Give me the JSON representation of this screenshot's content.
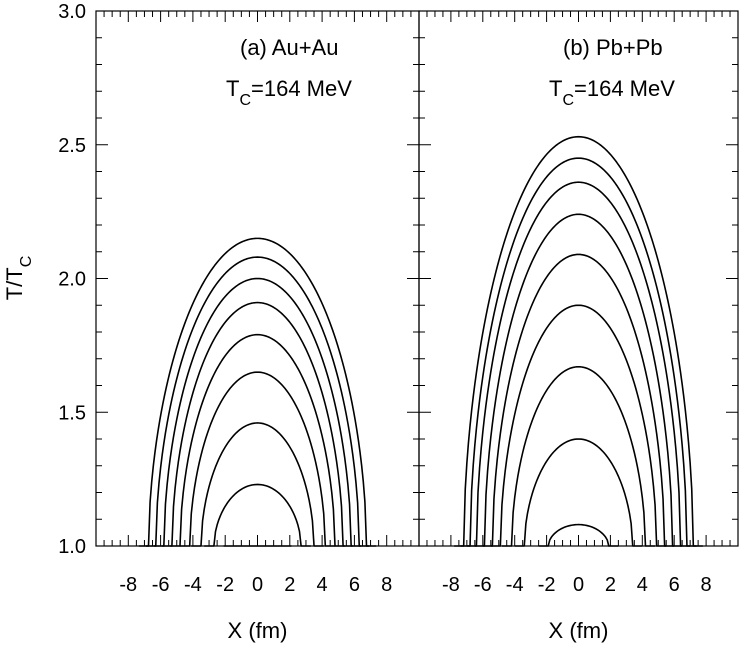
{
  "figure": {
    "ylabel": "T/T",
    "ylabel_sub": "C"
  },
  "chart_data": [
    {
      "type": "line",
      "panel_label": "(a) Au+Au",
      "tc_prefix": "T",
      "tc_sub": "C",
      "tc_value": "=164 MeV",
      "xlabel": "X (fm)",
      "xlim": [
        -10,
        10
      ],
      "ylim": [
        1.0,
        3.0
      ],
      "xticks": [
        -8,
        -6,
        -4,
        -2,
        0,
        2,
        4,
        6,
        8
      ],
      "xtick_labels": [
        "-8",
        "-6",
        "-4",
        "-2",
        "0",
        "2",
        "4",
        "6",
        "8"
      ],
      "yticks": [
        1.0,
        1.5,
        2.0,
        2.5,
        3.0
      ],
      "ytick_labels": [
        "1.0",
        "1.5",
        "2.0",
        "2.5",
        "3.0"
      ],
      "grid": false,
      "series": [
        {
          "peak": 2.15,
          "half_width": 6.75
        },
        {
          "peak": 2.08,
          "half_width": 6.3
        },
        {
          "peak": 2.0,
          "half_width": 5.8
        },
        {
          "peak": 1.91,
          "half_width": 5.3
        },
        {
          "peak": 1.79,
          "half_width": 4.8
        },
        {
          "peak": 1.65,
          "half_width": 4.2
        },
        {
          "peak": 1.46,
          "half_width": 3.5
        },
        {
          "peak": 1.23,
          "half_width": 2.7
        },
        {
          "peak": 1.0,
          "half_width": 1.5
        }
      ]
    },
    {
      "type": "line",
      "panel_label": "(b) Pb+Pb",
      "tc_prefix": "T",
      "tc_sub": "C",
      "tc_value": "=164 MeV",
      "xlabel": "X (fm)",
      "xlim": [
        -10,
        10
      ],
      "ylim": [
        1.0,
        3.0
      ],
      "xticks": [
        -8,
        -6,
        -4,
        -2,
        0,
        2,
        4,
        6,
        8
      ],
      "xtick_labels": [
        "-8",
        "-6",
        "-4",
        "-2",
        "0",
        "2",
        "4",
        "6",
        "8"
      ],
      "yticks": [
        1.0,
        1.5,
        2.0,
        2.5,
        3.0
      ],
      "ytick_labels": [
        "1.0",
        "1.5",
        "2.0",
        "2.5",
        "3.0"
      ],
      "grid": false,
      "series": [
        {
          "peak": 2.53,
          "half_width": 7.2
        },
        {
          "peak": 2.45,
          "half_width": 6.8
        },
        {
          "peak": 2.36,
          "half_width": 6.4
        },
        {
          "peak": 2.24,
          "half_width": 5.9
        },
        {
          "peak": 2.09,
          "half_width": 5.4
        },
        {
          "peak": 1.9,
          "half_width": 4.9
        },
        {
          "peak": 1.67,
          "half_width": 4.2
        },
        {
          "peak": 1.4,
          "half_width": 3.4
        },
        {
          "peak": 1.08,
          "half_width": 1.9
        }
      ]
    }
  ]
}
